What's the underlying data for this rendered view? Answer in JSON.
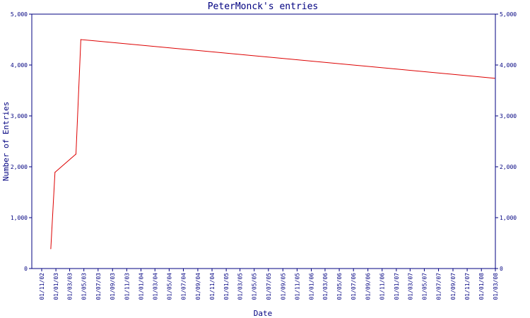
{
  "chart_data": {
    "type": "line",
    "title": "PeterMonck's entries",
    "xlabel": "Date",
    "ylabel": "Number of Entries",
    "ylim": [
      0,
      5000
    ],
    "y_ticks": [
      "0",
      "1,000",
      "2,000",
      "3,000",
      "4,000",
      "5,000"
    ],
    "y_tick_values": [
      0,
      1000,
      2000,
      3000,
      4000,
      5000
    ],
    "right_axis": true,
    "grid": false,
    "x_range": [
      "2002-11-01",
      "2008-03-01"
    ],
    "x_ticks": [
      "01/11/02",
      "01/01/03",
      "01/03/03",
      "01/05/03",
      "01/07/03",
      "01/09/03",
      "01/11/03",
      "01/01/04",
      "01/03/04",
      "01/05/04",
      "01/07/04",
      "01/09/04",
      "01/11/04",
      "01/01/05",
      "01/03/05",
      "01/05/05",
      "01/07/05",
      "01/09/05",
      "01/11/05",
      "01/01/06",
      "01/03/06",
      "01/05/06",
      "01/07/06",
      "01/09/06",
      "01/11/06",
      "01/01/07",
      "01/03/07",
      "01/05/07",
      "01/07/07",
      "01/09/07",
      "01/11/07",
      "01/01/08",
      "01/03/08"
    ],
    "series": [
      {
        "color": "#dd0000",
        "points": [
          {
            "x": "2002-12-10",
            "y": 390
          },
          {
            "x": "2002-12-28",
            "y": 1890
          },
          {
            "x": "2003-03-28",
            "y": 2250
          },
          {
            "x": "2003-04-18",
            "y": 4500
          },
          {
            "x": "2008-02-26",
            "y": 3740
          }
        ]
      }
    ],
    "colors": {
      "axis": "#000080",
      "line": "#dd0000",
      "background": "#ffffff"
    }
  }
}
